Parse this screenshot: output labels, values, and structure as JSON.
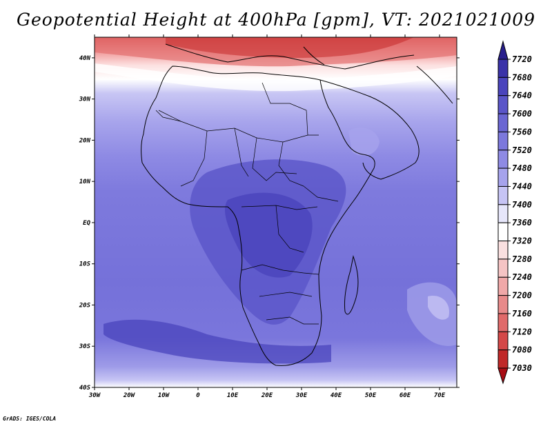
{
  "title": "Geopotential Height at 400hPa [gpm], VT: 2021021009",
  "credit": "GrADS: IGES/COLA",
  "map": {
    "lat_range": [
      -40,
      45
    ],
    "lon_range": [
      -30,
      75
    ],
    "lat_ticks": [
      "40N",
      "30N",
      "20N",
      "10N",
      "EQ",
      "10S",
      "20S",
      "30S",
      "40S"
    ],
    "lon_ticks": [
      "30W",
      "20W",
      "10W",
      "0",
      "10E",
      "20E",
      "30E",
      "40E",
      "50E",
      "60E",
      "70E"
    ]
  },
  "colorbar": {
    "levels": [
      "7720",
      "7680",
      "7640",
      "7600",
      "7560",
      "7520",
      "7480",
      "7440",
      "7400",
      "7360",
      "7320",
      "7280",
      "7240",
      "7200",
      "7160",
      "7120",
      "7080",
      "7030"
    ],
    "colors": [
      "#281e8c",
      "#3a32a8",
      "#4a44bc",
      "#5a55c8",
      "#6a66d2",
      "#7c78dc",
      "#8e8ae4",
      "#a6a3ec",
      "#c6c4f4",
      "#e6e6fa",
      "#ffffff",
      "#fae0e0",
      "#f5c4c4",
      "#f0a8a8",
      "#e88a8a",
      "#e06a6a",
      "#d44848",
      "#c02828",
      "#a80c14"
    ]
  }
}
